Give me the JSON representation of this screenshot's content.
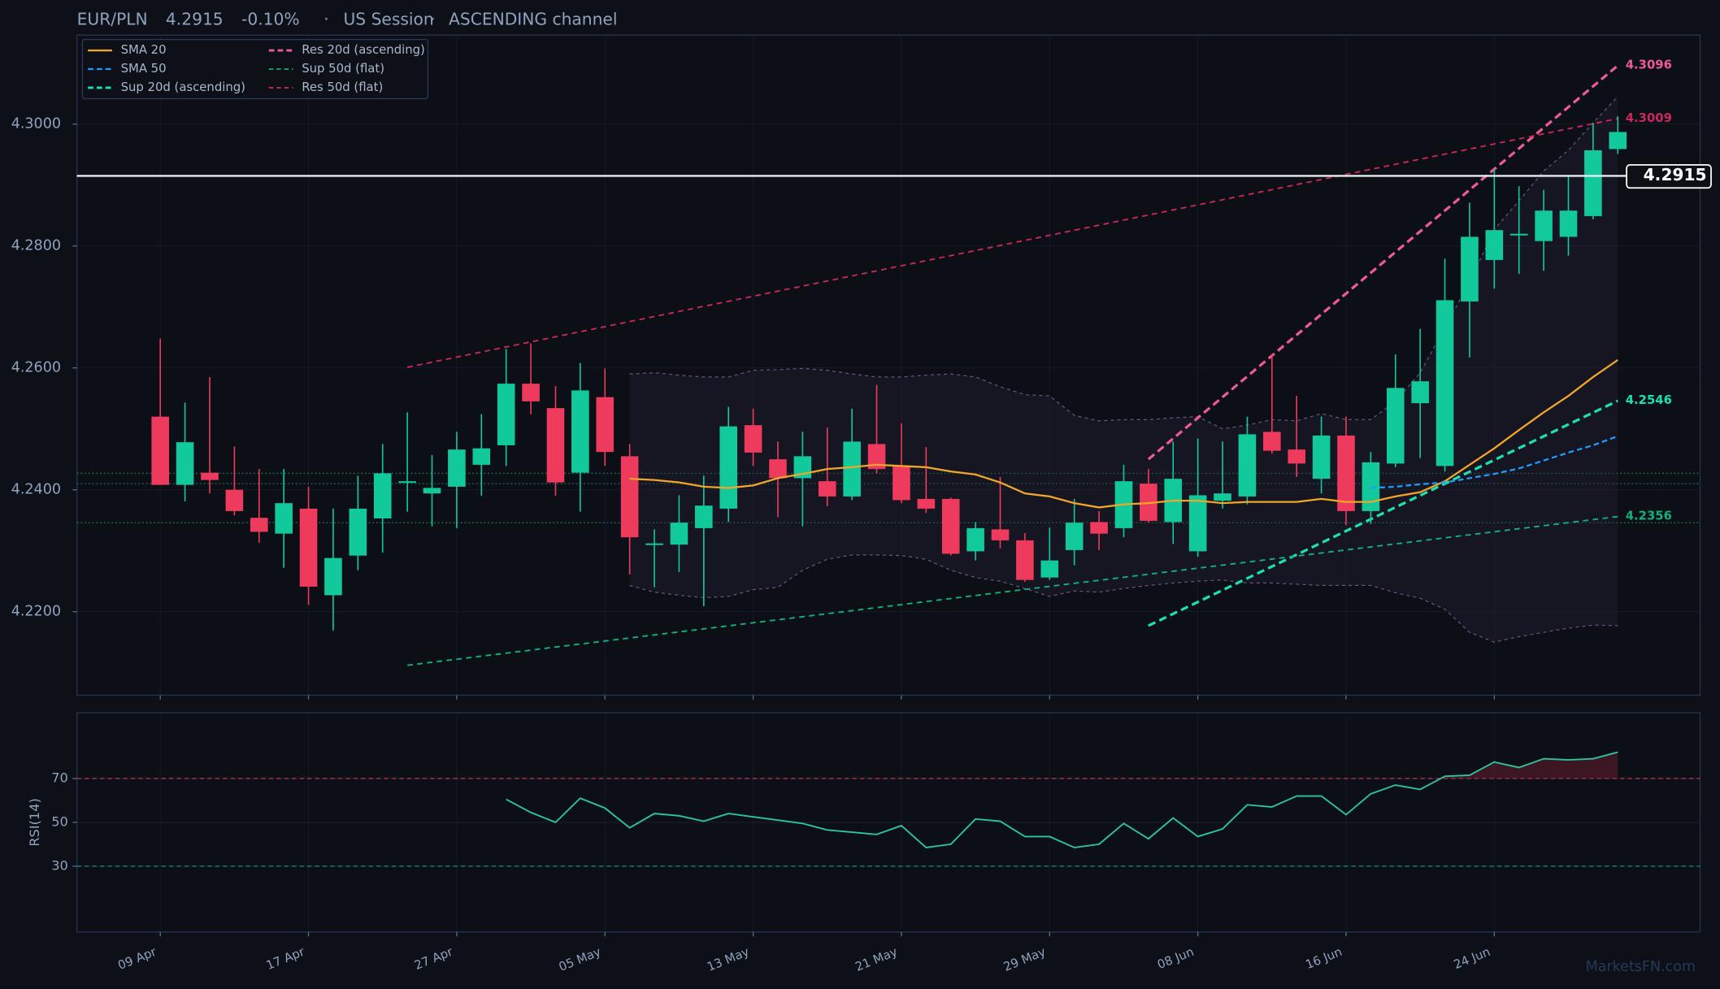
{
  "chart_data": {
    "type": "candlestick",
    "symbol": "EUR/PLN",
    "last_price": 4.2915,
    "change": "-0.10%",
    "session": "US Session",
    "channel": "ASCENDING channel",
    "watermark": "MarketsFN.com",
    "up_color": "#12c99b",
    "down_color": "#ee3a5c",
    "grid": true,
    "categories": [
      "09 Apr",
      null,
      null,
      null,
      null,
      null,
      "17 Apr",
      null,
      null,
      null,
      null,
      null,
      "27 Apr",
      null,
      null,
      null,
      null,
      null,
      "05 May",
      null,
      null,
      null,
      null,
      null,
      "13 May",
      null,
      null,
      null,
      null,
      null,
      "21 May",
      null,
      null,
      null,
      null,
      null,
      "29 May",
      null,
      null,
      null,
      null,
      null,
      "08 Jun",
      null,
      null,
      null,
      null,
      null,
      "16 Jun",
      null,
      null,
      null,
      null,
      null,
      "24 Jun",
      null,
      null,
      null,
      null,
      null
    ],
    "ylim": [
      4.2063,
      4.3146
    ],
    "yticks": [
      {
        "value": 4.22,
        "label": "4.2200"
      },
      {
        "value": 4.24,
        "label": "4.2400"
      },
      {
        "value": 4.26,
        "label": "4.2600"
      },
      {
        "value": 4.28,
        "label": "4.2800"
      },
      {
        "value": 4.3,
        "label": "4.3000"
      }
    ],
    "candles": {
      "open": [
        4.252,
        4.2408,
        4.2428,
        4.24,
        4.2354,
        4.2328,
        4.2369,
        4.2227,
        4.2292,
        4.2353,
        4.2412,
        4.2394,
        4.2405,
        4.2441,
        4.2473,
        4.2574,
        4.2534,
        4.2428,
        4.2552,
        4.2455,
        4.231,
        4.231,
        4.2337,
        4.2369,
        4.2506,
        4.245,
        4.2419,
        4.2414,
        4.2389,
        4.2475,
        4.2439,
        4.2385,
        4.2385,
        4.2299,
        4.2335,
        4.2317,
        4.2256,
        4.2301,
        4.2347,
        4.2337,
        4.241,
        4.2347,
        4.2299,
        4.2382,
        4.2389,
        4.2495,
        4.2466,
        4.2418,
        4.2489,
        4.2365,
        4.2443,
        4.2542,
        4.2439,
        4.2709,
        4.2777,
        4.2818,
        4.2808,
        4.2815,
        4.2849,
        4.2959
      ],
      "high": [
        4.2648,
        4.2543,
        4.2585,
        4.2471,
        4.2434,
        4.2434,
        4.2405,
        4.2369,
        4.2423,
        4.2475,
        4.2527,
        4.2457,
        4.2495,
        4.2524,
        4.2631,
        4.264,
        4.257,
        4.2608,
        4.2599,
        4.2475,
        4.2335,
        4.2391,
        4.2423,
        4.2536,
        4.2533,
        4.2479,
        4.2495,
        4.2502,
        4.2533,
        4.2572,
        4.2509,
        4.247,
        4.2387,
        4.2347,
        4.2421,
        4.2329,
        4.2338,
        4.2385,
        4.2365,
        4.2441,
        4.2434,
        4.2479,
        4.2484,
        4.2479,
        4.252,
        4.2622,
        4.2554,
        4.252,
        4.252,
        4.2462,
        4.2622,
        4.2664,
        4.2779,
        4.2871,
        4.2926,
        4.2898,
        4.2892,
        4.2916,
        4.3002,
        4.3013
      ],
      "low": [
        4.2408,
        4.2381,
        4.2394,
        4.2358,
        4.2313,
        4.2272,
        4.2211,
        4.2169,
        4.2268,
        4.2297,
        4.2364,
        4.234,
        4.2337,
        4.239,
        4.2439,
        4.2524,
        4.239,
        4.2364,
        4.2439,
        4.2261,
        4.224,
        4.2265,
        4.2209,
        4.2347,
        4.2439,
        4.2355,
        4.234,
        4.2373,
        4.2383,
        4.2427,
        4.2378,
        4.2362,
        4.2292,
        4.2284,
        4.2304,
        4.2249,
        4.2252,
        4.2276,
        4.2301,
        4.2322,
        4.2346,
        4.2311,
        4.229,
        4.2369,
        4.2376,
        4.2459,
        4.2421,
        4.2394,
        4.2342,
        4.2344,
        4.2437,
        4.2452,
        4.243,
        4.2617,
        4.273,
        4.2754,
        4.2759,
        4.2784,
        4.2844,
        4.2951
      ],
      "close": [
        4.2408,
        4.2478,
        4.2416,
        4.2365,
        4.2331,
        4.2378,
        4.2241,
        4.2288,
        4.2369,
        4.2427,
        4.2414,
        4.2403,
        4.2466,
        4.2468,
        4.2574,
        4.2545,
        4.2412,
        4.2563,
        4.2462,
        4.2322,
        4.2312,
        4.2346,
        4.2374,
        4.2504,
        4.2461,
        4.2419,
        4.2455,
        4.2389,
        4.2479,
        4.2434,
        4.2383,
        4.2369,
        4.2295,
        4.2337,
        4.2317,
        4.2252,
        4.2284,
        4.2346,
        4.2328,
        4.2414,
        4.2349,
        4.2418,
        4.2391,
        4.2394,
        4.2491,
        4.2464,
        4.2443,
        4.2489,
        4.2365,
        4.2445,
        4.2567,
        4.2578,
        4.2711,
        4.2815,
        4.2826,
        4.282,
        4.2858,
        4.2858,
        4.2957,
        4.2987
      ]
    },
    "bands": {
      "color": "#6a5480",
      "upper": [
        null,
        null,
        null,
        null,
        null,
        null,
        null,
        null,
        null,
        null,
        null,
        null,
        null,
        null,
        null,
        null,
        null,
        null,
        null,
        4.259,
        4.2592,
        4.2588,
        4.2585,
        4.2585,
        4.2596,
        4.2597,
        4.2599,
        4.2596,
        4.259,
        4.2585,
        4.2585,
        4.2588,
        4.259,
        4.2585,
        4.2569,
        4.2556,
        4.2554,
        4.2522,
        4.2513,
        4.2515,
        4.2515,
        4.2518,
        4.252,
        4.25,
        4.2506,
        4.2515,
        4.2513,
        4.2525,
        4.2515,
        4.2515,
        4.2545,
        4.2592,
        4.2666,
        4.2741,
        4.2827,
        4.2874,
        4.2923,
        4.2957,
        4.3002,
        4.3045
      ],
      "lower": [
        null,
        null,
        null,
        null,
        null,
        null,
        null,
        null,
        null,
        null,
        null,
        null,
        null,
        null,
        null,
        null,
        null,
        null,
        null,
        4.2243,
        4.2232,
        4.2227,
        4.2223,
        4.2225,
        4.2236,
        4.224,
        4.2268,
        4.2286,
        4.2293,
        4.2293,
        4.2292,
        4.2286,
        4.2268,
        4.2256,
        4.225,
        4.2238,
        4.2225,
        4.2234,
        4.2232,
        4.2238,
        4.2243,
        4.2247,
        4.225,
        4.2252,
        4.2247,
        4.2247,
        4.2245,
        4.2243,
        4.2243,
        4.2243,
        4.2231,
        4.2222,
        4.2204,
        4.2166,
        4.215,
        4.2159,
        4.2166,
        4.2173,
        4.2178,
        4.2177
      ]
    },
    "levels": [
      {
        "value": 4.2427,
        "color": "#1f6b4a"
      },
      {
        "value": 4.241,
        "color": "#1f5f50"
      },
      {
        "value": 4.2346,
        "color": "#1f6b4a"
      }
    ],
    "series": [
      {
        "name": "SMA 20",
        "color": "#f0a62a",
        "dash": false,
        "values": [
          null,
          null,
          null,
          null,
          null,
          null,
          null,
          null,
          null,
          null,
          null,
          null,
          null,
          null,
          null,
          null,
          null,
          null,
          null,
          4.2418,
          4.2416,
          4.2412,
          4.2405,
          4.2403,
          4.2407,
          4.2419,
          4.2426,
          4.2434,
          4.2437,
          4.2441,
          4.2439,
          4.2437,
          4.243,
          4.2425,
          4.2412,
          4.2394,
          4.2389,
          4.2378,
          4.2371,
          4.2376,
          4.2378,
          4.2382,
          4.2382,
          4.2378,
          4.238,
          4.238,
          4.238,
          4.2385,
          4.238,
          4.238,
          4.2389,
          4.2396,
          4.2414,
          4.2441,
          4.2468,
          4.2498,
          4.2527,
          4.2554,
          4.2585,
          4.2613
        ]
      },
      {
        "name": "SMA 50",
        "color": "#1e9bff",
        "dash": true,
        "values": [
          null,
          null,
          null,
          null,
          null,
          null,
          null,
          null,
          null,
          null,
          null,
          null,
          null,
          null,
          null,
          null,
          null,
          null,
          null,
          null,
          null,
          null,
          null,
          null,
          null,
          null,
          null,
          null,
          null,
          null,
          null,
          null,
          null,
          null,
          null,
          null,
          null,
          null,
          null,
          null,
          null,
          null,
          null,
          null,
          null,
          null,
          null,
          null,
          null,
          4.2403,
          4.2405,
          4.2409,
          4.2412,
          4.2419,
          4.2426,
          4.2435,
          4.2448,
          4.2461,
          4.2473,
          4.2488
        ]
      }
    ],
    "trendlines": [
      {
        "name": "Sup 20d (ascending)",
        "color": "#1de0b0",
        "bold": true,
        "from": 40,
        "to": 59,
        "values": [
          4.2177,
          4.2546
        ]
      },
      {
        "name": "Res 20d (ascending)",
        "color": "#ec5a98",
        "bold": true,
        "from": 40,
        "to": 59,
        "values": [
          4.245,
          4.3096
        ]
      },
      {
        "name": "Sup 50d (flat)",
        "color": "#12b07c",
        "bold": false,
        "from": 10,
        "to": 59,
        "values": [
          4.2112,
          4.2356
        ]
      },
      {
        "name": "Res 50d (flat)",
        "color": "#c8285a",
        "bold": false,
        "from": 10,
        "to": 59,
        "values": [
          4.2601,
          4.3009
        ]
      }
    ],
    "rsi": {
      "label": "RSI(14)",
      "color": "#2cc4a0",
      "ylim": [
        0,
        100
      ],
      "yticks": [
        30,
        50,
        70
      ],
      "overbought": 70,
      "oversold": 30,
      "values": [
        null,
        null,
        null,
        null,
        null,
        null,
        null,
        null,
        null,
        null,
        null,
        null,
        null,
        null,
        60.5,
        54.5,
        50,
        61,
        56.5,
        47.5,
        54,
        53,
        50.5,
        54,
        52.5,
        51,
        49.5,
        46.5,
        45.5,
        44.5,
        48.5,
        38.5,
        40,
        51.5,
        50.5,
        43.5,
        43.5,
        38.5,
        40,
        49.5,
        42.5,
        52,
        43.5,
        47,
        58,
        57,
        62,
        62,
        53.5,
        63,
        67,
        65,
        71,
        71.5,
        77.5,
        75,
        79,
        78.5,
        79,
        82
      ]
    }
  }
}
